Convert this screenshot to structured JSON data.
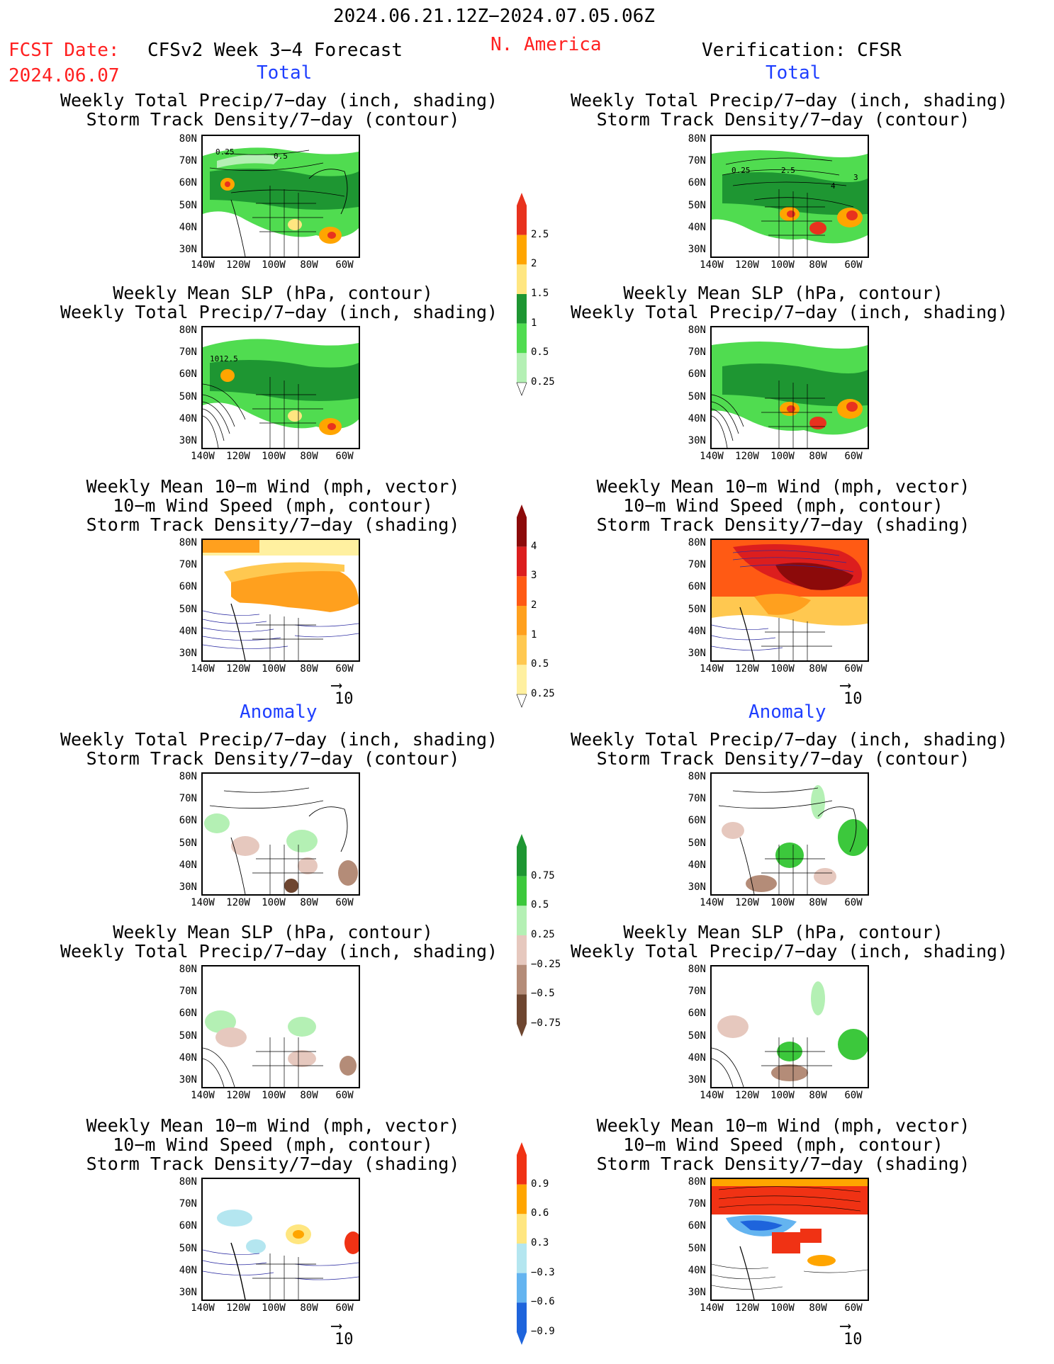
{
  "header": {
    "date_range": "2024.06.21.12Z−2024.07.05.06Z",
    "fcst_label": "FCST Date:",
    "fcst_date": "2024.06.07",
    "model": "CFSv2 Week 3−4 Forecast",
    "region": "N. America",
    "verification": "Verification: CFSR"
  },
  "sections": {
    "total": "Total",
    "anomaly": "Anomaly"
  },
  "titles": {
    "precip_storm": [
      "Weekly Total Precip/7−day (inch, shading)",
      "Storm Track Density/7−day (contour)"
    ],
    "slp_precip": [
      "Weekly Mean SLP (hPa, contour)",
      "Weekly Total Precip/7−day (inch, shading)"
    ],
    "wind_storm": [
      "Weekly Mean 10−m Wind (mph, vector)",
      "10−m Wind Speed (mph, contour)",
      "Storm Track Density/7−day (shading)"
    ]
  },
  "axes": {
    "lat_ticks": [
      "80N",
      "70N",
      "60N",
      "50N",
      "40N",
      "30N"
    ],
    "lon_ticks": [
      "140W",
      "120W",
      "100W",
      "80W",
      "60W"
    ]
  },
  "map_labels": {
    "p1_c1": "0.25",
    "p1_c2": "0.5",
    "p2_c1": "1012.5",
    "p7_c1": "0.25",
    "p7_c2": "2.5",
    "p7_c3": "4",
    "p7_c4": "3"
  },
  "vector_ref": "10",
  "colorbars": [
    {
      "id": "precip-total",
      "labels": [
        "2.5",
        "2",
        "1.5",
        "1",
        "0.5",
        "0.25"
      ],
      "colors": [
        "#e8321e",
        "#ffa500",
        "#ffe680",
        "#1e9632",
        "#50dc50",
        "#b4f0b4"
      ]
    },
    {
      "id": "storm-total",
      "labels": [
        "4",
        "3",
        "2",
        "1",
        "0.5",
        "0.25"
      ],
      "colors": [
        "#8c0a0a",
        "#dc1e1e",
        "#ff5a14",
        "#ffa01e",
        "#ffc850",
        "#fff0a0"
      ]
    },
    {
      "id": "precip-anom",
      "labels": [
        "0.75",
        "0.5",
        "0.25",
        "−0.25",
        "−0.5",
        "−0.75"
      ],
      "colors": [
        "#1e9632",
        "#3cc83c",
        "#b4f0b4",
        "#e6c8be",
        "#b48c78",
        "#6e4630"
      ]
    },
    {
      "id": "storm-anom",
      "labels": [
        "0.9",
        "0.6",
        "0.3",
        "−0.3",
        "−0.6",
        "−0.9"
      ],
      "colors": [
        "#f03214",
        "#ffa500",
        "#ffe680",
        "#b4e6f0",
        "#64b4f0",
        "#1e64dc"
      ]
    }
  ]
}
